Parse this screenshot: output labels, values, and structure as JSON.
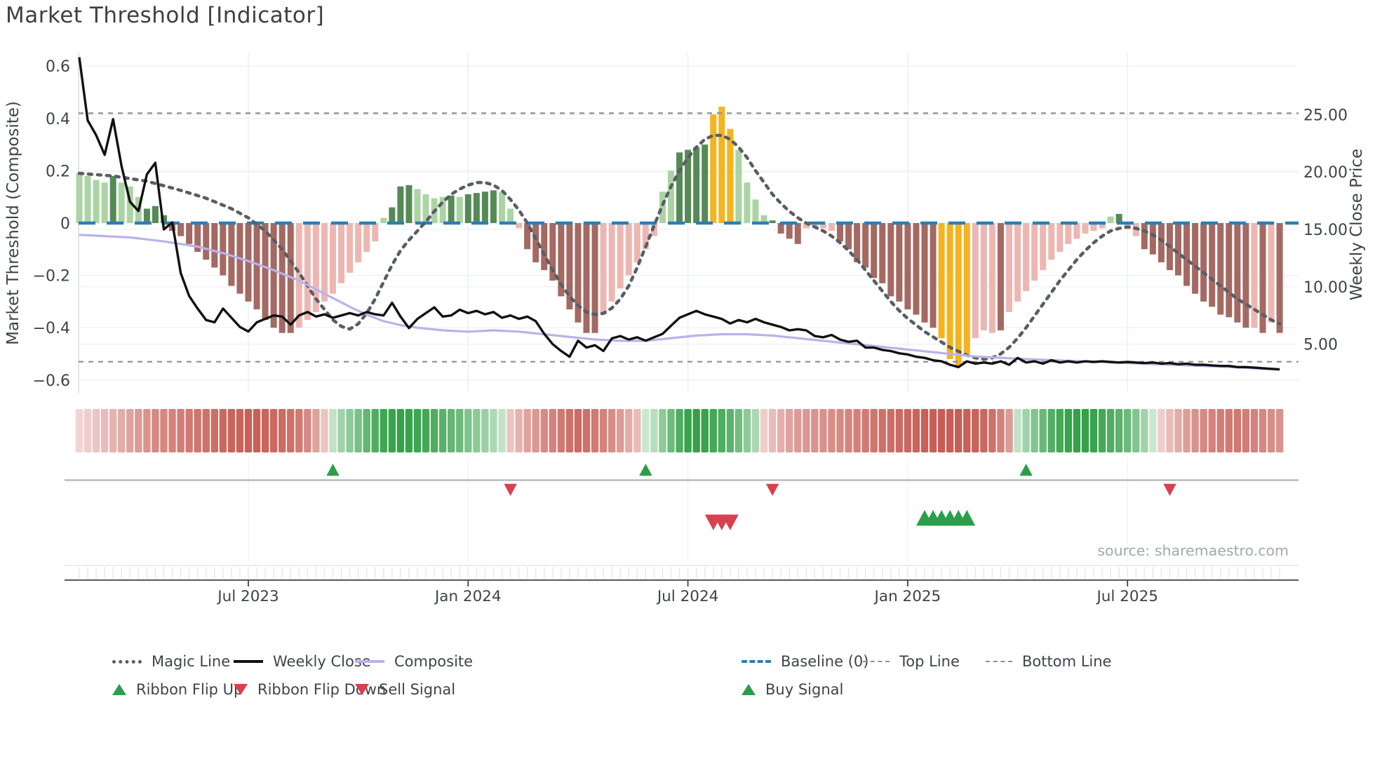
{
  "title": "Market Threshold [Indicator]",
  "source_text": "source: sharemaestro.com",
  "axes": {
    "left_label": "Market Threshold (Composite)",
    "right_label": "Weekly Close Price",
    "left_ticks": [
      {
        "label": "0.6",
        "value": 0.6
      },
      {
        "label": "0.4",
        "value": 0.4
      },
      {
        "label": "0.2",
        "value": 0.2
      },
      {
        "label": "0",
        "value": 0.0
      },
      {
        "label": "−0.2",
        "value": -0.2
      },
      {
        "label": "−0.4",
        "value": -0.4
      },
      {
        "label": "−0.6",
        "value": -0.6
      }
    ],
    "right_ticks": [
      {
        "label": "25.00",
        "value": 25
      },
      {
        "label": "20.00",
        "value": 20
      },
      {
        "label": "15.00",
        "value": 15
      },
      {
        "label": "10.00",
        "value": 10
      },
      {
        "label": "5.00",
        "value": 5
      }
    ],
    "x_ticks": [
      {
        "label": "Jul 2023",
        "week": 20
      },
      {
        "label": "Jan 2024",
        "week": 46
      },
      {
        "label": "Jul 2024",
        "week": 72
      },
      {
        "label": "Jan 2025",
        "week": 98
      },
      {
        "label": "Jul 2025",
        "week": 124
      }
    ]
  },
  "colors": {
    "bar_light_green": "#abd4a4",
    "bar_dark_green": "#558a57",
    "bar_yellow": "#f4b41d",
    "bar_light_red": "#ecb7b2",
    "bar_dark_red": "#a46962",
    "ribbon_green_max": "#2f9e44",
    "ribbon_red_max": "#c5584f",
    "magic_line": "#5a5e63",
    "weekly_close": "#111111",
    "composite": "#bab2e9",
    "baseline": "#2e7db4",
    "threshold_lines": "#8b8f93",
    "signal_green": "#2c9e4b",
    "signal_red": "#d8414e",
    "grid": "#eef1f4",
    "tick_text": "#3d4349",
    "source": "#a3a8ad"
  },
  "chart_data": {
    "type": "bar",
    "subtype": "weekly composite-threshold histogram with overlaid lines, signal ribbon and markers",
    "weeks": 143,
    "x_range": "Mar 2023 – Nov 2025 (weekly)",
    "left_ylim": [
      -0.6,
      0.6
    ],
    "right_ylim_prices": [
      5,
      25
    ],
    "baseline": 0,
    "top_line": 0.42,
    "bottom_line": -0.53,
    "threshold_bars": {
      "values": [
        0.19,
        0.18,
        0.165,
        0.155,
        0.18,
        0.155,
        0.14,
        0.1,
        0.055,
        0.065,
        0.03,
        -0.03,
        -0.05,
        -0.08,
        -0.11,
        -0.14,
        -0.17,
        -0.2,
        -0.24,
        -0.27,
        -0.3,
        -0.33,
        -0.37,
        -0.4,
        -0.42,
        -0.42,
        -0.4,
        -0.37,
        -0.34,
        -0.3,
        -0.27,
        -0.23,
        -0.19,
        -0.15,
        -0.11,
        -0.07,
        0.02,
        0.06,
        0.14,
        0.145,
        0.13,
        0.11,
        0.095,
        0.1,
        0.105,
        0.1,
        0.11,
        0.115,
        0.12,
        0.125,
        0.12,
        0.055,
        -0.02,
        -0.1,
        -0.15,
        -0.18,
        -0.22,
        -0.28,
        -0.33,
        -0.38,
        -0.42,
        -0.42,
        -0.35,
        -0.3,
        -0.25,
        -0.2,
        -0.15,
        -0.1,
        -0.05,
        0.12,
        0.2,
        0.27,
        0.28,
        0.29,
        0.3,
        0.415,
        0.445,
        0.36,
        0.28,
        0.155,
        0.09,
        0.03,
        0.01,
        -0.04,
        -0.06,
        -0.08,
        -0.02,
        -0.015,
        -0.02,
        -0.03,
        -0.07,
        -0.1,
        -0.15,
        -0.17,
        -0.21,
        -0.23,
        -0.28,
        -0.3,
        -0.33,
        -0.35,
        -0.38,
        -0.4,
        -0.44,
        -0.52,
        -0.55,
        -0.5,
        -0.44,
        -0.41,
        -0.42,
        -0.41,
        -0.34,
        -0.3,
        -0.26,
        -0.22,
        -0.18,
        -0.14,
        -0.11,
        -0.08,
        -0.06,
        -0.04,
        -0.03,
        -0.02,
        0.025,
        0.035,
        -0.02,
        -0.05,
        -0.1,
        -0.12,
        -0.15,
        -0.18,
        -0.2,
        -0.24,
        -0.27,
        -0.3,
        -0.32,
        -0.35,
        -0.36,
        -0.38,
        -0.4,
        -0.4,
        -0.42,
        -0.38,
        -0.42
      ],
      "classes": [
        "lg",
        "lg",
        "lg",
        "lg",
        "dg",
        "lg",
        "lg",
        "lg",
        "dg",
        "dg",
        "dg",
        "dr",
        "dr",
        "dr",
        "dr",
        "dr",
        "dr",
        "dr",
        "dr",
        "dr",
        "dr",
        "dr",
        "dr",
        "dr",
        "dr",
        "dr",
        "lr",
        "lr",
        "lr",
        "lr",
        "lr",
        "lr",
        "lr",
        "lr",
        "lr",
        "lr",
        "lg",
        "dg",
        "dg",
        "dg",
        "lg",
        "lg",
        "lg",
        "lg",
        "dg",
        "lg",
        "dg",
        "dg",
        "dg",
        "dg",
        "lg",
        "lg",
        "lr",
        "dr",
        "dr",
        "dr",
        "dr",
        "dr",
        "dr",
        "dr",
        "dr",
        "dr",
        "lr",
        "lr",
        "lr",
        "lr",
        "lr",
        "lr",
        "lr",
        "lg",
        "lg",
        "dg",
        "dg",
        "dg",
        "dg",
        "y",
        "y",
        "y",
        "lg",
        "lg",
        "lg",
        "lg",
        "dg",
        "dr",
        "dr",
        "dr",
        "lr",
        "lr",
        "lr",
        "lr",
        "dr",
        "dr",
        "dr",
        "dr",
        "dr",
        "dr",
        "dr",
        "dr",
        "dr",
        "dr",
        "dr",
        "dr",
        "y",
        "y",
        "y",
        "y",
        "lr",
        "lr",
        "lr",
        "dr",
        "lr",
        "lr",
        "lr",
        "lr",
        "lr",
        "lr",
        "lr",
        "lr",
        "lr",
        "lr",
        "lr",
        "lr",
        "lg",
        "dg",
        "lr",
        "lr",
        "dr",
        "dr",
        "dr",
        "dr",
        "dr",
        "dr",
        "dr",
        "dr",
        "dr",
        "dr",
        "dr",
        "dr",
        "dr",
        "lr",
        "dr",
        "lr",
        "dr"
      ]
    },
    "weekly_close": [
      30.0,
      24.5,
      23.2,
      21.5,
      24.6,
      20.5,
      17.4,
      16.6,
      19.8,
      20.8,
      15.0,
      15.6,
      11.2,
      9.2,
      8.1,
      7.1,
      6.9,
      8.1,
      7.3,
      6.5,
      6.1,
      6.9,
      7.2,
      7.5,
      7.4,
      6.7,
      7.5,
      7.8,
      7.4,
      7.6,
      7.3,
      7.5,
      7.7,
      7.5,
      7.8,
      7.6,
      7.5,
      8.6,
      7.4,
      6.4,
      7.2,
      7.7,
      8.2,
      7.4,
      7.5,
      8.0,
      7.7,
      7.9,
      7.6,
      7.8,
      7.3,
      7.5,
      7.2,
      7.4,
      7.0,
      5.9,
      5.0,
      4.4,
      3.9,
      5.3,
      4.7,
      4.9,
      4.4,
      5.5,
      5.7,
      5.4,
      5.6,
      5.3,
      5.6,
      5.9,
      6.6,
      7.3,
      7.6,
      7.9,
      7.6,
      7.4,
      7.2,
      6.8,
      7.1,
      6.9,
      7.2,
      6.9,
      6.7,
      6.5,
      6.2,
      6.3,
      6.2,
      5.7,
      5.6,
      5.8,
      5.4,
      5.2,
      5.3,
      4.7,
      4.7,
      4.5,
      4.4,
      4.2,
      4.1,
      3.9,
      3.8,
      3.6,
      3.5,
      3.2,
      3.0,
      3.5,
      3.3,
      3.4,
      3.3,
      3.5,
      3.2,
      3.8,
      3.4,
      3.5,
      3.3,
      3.6,
      3.4,
      3.5,
      3.4,
      3.5,
      3.45,
      3.5,
      3.45,
      3.4,
      3.45,
      3.4,
      3.35,
      3.4,
      3.3,
      3.35,
      3.25,
      3.3,
      3.2,
      3.2,
      3.15,
      3.1,
      3.1,
      3.0,
      3.0,
      2.95,
      2.9,
      2.85,
      2.8
    ],
    "composite_keypoints": [
      [
        0,
        -0.045
      ],
      [
        6,
        -0.055
      ],
      [
        10,
        -0.07
      ],
      [
        14,
        -0.09
      ],
      [
        17,
        -0.115
      ],
      [
        20,
        -0.145
      ],
      [
        23,
        -0.18
      ],
      [
        26,
        -0.22
      ],
      [
        29,
        -0.27
      ],
      [
        32,
        -0.32
      ],
      [
        34,
        -0.35
      ],
      [
        36,
        -0.375
      ],
      [
        38,
        -0.39
      ],
      [
        40,
        -0.4
      ],
      [
        43,
        -0.41
      ],
      [
        46,
        -0.415
      ],
      [
        49,
        -0.41
      ],
      [
        52,
        -0.415
      ],
      [
        55,
        -0.425
      ],
      [
        58,
        -0.435
      ],
      [
        61,
        -0.445
      ],
      [
        64,
        -0.45
      ],
      [
        67,
        -0.45
      ],
      [
        70,
        -0.44
      ],
      [
        73,
        -0.43
      ],
      [
        76,
        -0.425
      ],
      [
        79,
        -0.425
      ],
      [
        82,
        -0.43
      ],
      [
        85,
        -0.44
      ],
      [
        88,
        -0.45
      ],
      [
        91,
        -0.46
      ],
      [
        94,
        -0.47
      ],
      [
        97,
        -0.48
      ],
      [
        100,
        -0.49
      ],
      [
        103,
        -0.5
      ],
      [
        106,
        -0.51
      ],
      [
        109,
        -0.515
      ],
      [
        112,
        -0.52
      ],
      [
        116,
        -0.525
      ],
      [
        120,
        -0.53
      ],
      [
        124,
        -0.535
      ],
      [
        128,
        -0.54
      ],
      [
        132,
        -0.545
      ],
      [
        136,
        -0.55
      ],
      [
        139,
        -0.555
      ],
      [
        142,
        -0.56
      ]
    ],
    "magic_keypoints": [
      [
        0,
        0.19
      ],
      [
        4,
        0.18
      ],
      [
        8,
        0.16
      ],
      [
        12,
        0.125
      ],
      [
        15,
        0.095
      ],
      [
        18,
        0.055
      ],
      [
        20,
        0.02
      ],
      [
        22,
        -0.03
      ],
      [
        24,
        -0.1
      ],
      [
        26,
        -0.19
      ],
      [
        28,
        -0.29
      ],
      [
        30,
        -0.37
      ],
      [
        31,
        -0.395
      ],
      [
        32,
        -0.405
      ],
      [
        33,
        -0.385
      ],
      [
        34,
        -0.345
      ],
      [
        35,
        -0.29
      ],
      [
        36,
        -0.225
      ],
      [
        37,
        -0.16
      ],
      [
        38,
        -0.105
      ],
      [
        39,
        -0.065
      ],
      [
        40,
        -0.03
      ],
      [
        41,
        0.005
      ],
      [
        42,
        0.045
      ],
      [
        43,
        0.08
      ],
      [
        44,
        0.11
      ],
      [
        45,
        0.13
      ],
      [
        46,
        0.145
      ],
      [
        47,
        0.155
      ],
      [
        48,
        0.155
      ],
      [
        49,
        0.145
      ],
      [
        50,
        0.125
      ],
      [
        51,
        0.09
      ],
      [
        52,
        0.05
      ],
      [
        53,
        0.0
      ],
      [
        54,
        -0.06
      ],
      [
        55,
        -0.12
      ],
      [
        56,
        -0.18
      ],
      [
        57,
        -0.235
      ],
      [
        58,
        -0.28
      ],
      [
        59,
        -0.315
      ],
      [
        60,
        -0.34
      ],
      [
        61,
        -0.35
      ],
      [
        62,
        -0.345
      ],
      [
        63,
        -0.325
      ],
      [
        64,
        -0.29
      ],
      [
        65,
        -0.24
      ],
      [
        66,
        -0.17
      ],
      [
        67,
        -0.09
      ],
      [
        68,
        -0.01
      ],
      [
        69,
        0.07
      ],
      [
        70,
        0.14
      ],
      [
        71,
        0.2
      ],
      [
        72,
        0.25
      ],
      [
        73,
        0.29
      ],
      [
        74,
        0.32
      ],
      [
        75,
        0.335
      ],
      [
        76,
        0.335
      ],
      [
        77,
        0.32
      ],
      [
        78,
        0.29
      ],
      [
        79,
        0.25
      ],
      [
        80,
        0.2
      ],
      [
        81,
        0.155
      ],
      [
        82,
        0.11
      ],
      [
        83,
        0.075
      ],
      [
        84,
        0.045
      ],
      [
        85,
        0.02
      ],
      [
        86,
        0.0
      ],
      [
        87,
        -0.015
      ],
      [
        88,
        -0.03
      ],
      [
        89,
        -0.05
      ],
      [
        90,
        -0.075
      ],
      [
        91,
        -0.105
      ],
      [
        92,
        -0.14
      ],
      [
        93,
        -0.18
      ],
      [
        94,
        -0.22
      ],
      [
        95,
        -0.26
      ],
      [
        96,
        -0.3
      ],
      [
        97,
        -0.335
      ],
      [
        98,
        -0.365
      ],
      [
        99,
        -0.39
      ],
      [
        100,
        -0.415
      ],
      [
        101,
        -0.435
      ],
      [
        102,
        -0.455
      ],
      [
        103,
        -0.475
      ],
      [
        104,
        -0.49
      ],
      [
        105,
        -0.505
      ],
      [
        106,
        -0.515
      ],
      [
        107,
        -0.52
      ],
      [
        108,
        -0.515
      ],
      [
        109,
        -0.5
      ],
      [
        110,
        -0.475
      ],
      [
        111,
        -0.44
      ],
      [
        112,
        -0.4
      ],
      [
        113,
        -0.355
      ],
      [
        114,
        -0.31
      ],
      [
        115,
        -0.265
      ],
      [
        116,
        -0.22
      ],
      [
        117,
        -0.18
      ],
      [
        118,
        -0.14
      ],
      [
        119,
        -0.105
      ],
      [
        120,
        -0.075
      ],
      [
        121,
        -0.05
      ],
      [
        122,
        -0.03
      ],
      [
        123,
        -0.02
      ],
      [
        124,
        -0.015
      ],
      [
        125,
        -0.02
      ],
      [
        126,
        -0.03
      ],
      [
        127,
        -0.045
      ],
      [
        128,
        -0.065
      ],
      [
        129,
        -0.09
      ],
      [
        130,
        -0.115
      ],
      [
        131,
        -0.14
      ],
      [
        132,
        -0.165
      ],
      [
        133,
        -0.19
      ],
      [
        134,
        -0.215
      ],
      [
        135,
        -0.24
      ],
      [
        136,
        -0.265
      ],
      [
        137,
        -0.29
      ],
      [
        138,
        -0.31
      ],
      [
        139,
        -0.33
      ],
      [
        140,
        -0.35
      ],
      [
        141,
        -0.37
      ],
      [
        142,
        -0.385
      ]
    ],
    "ribbon": [
      -0.25,
      -0.3,
      -0.35,
      -0.4,
      -0.45,
      -0.5,
      -0.55,
      -0.6,
      -0.65,
      -0.7,
      -0.72,
      -0.75,
      -0.78,
      -0.8,
      -0.82,
      -0.85,
      -0.87,
      -0.9,
      -0.92,
      -0.93,
      -0.95,
      -0.95,
      -0.93,
      -0.9,
      -0.88,
      -0.85,
      -0.8,
      -0.7,
      -0.55,
      -0.35,
      0.3,
      0.45,
      0.55,
      0.65,
      0.75,
      0.85,
      0.92,
      0.95,
      0.97,
      0.95,
      0.93,
      0.9,
      0.85,
      0.8,
      0.75,
      0.7,
      0.62,
      0.55,
      0.48,
      0.4,
      0.3,
      -0.35,
      -0.45,
      -0.55,
      -0.62,
      -0.7,
      -0.75,
      -0.8,
      -0.85,
      -0.88,
      -0.85,
      -0.8,
      -0.75,
      -0.68,
      -0.6,
      -0.5,
      -0.4,
      0.25,
      0.35,
      0.55,
      0.7,
      0.85,
      0.95,
      0.97,
      0.95,
      0.9,
      0.85,
      0.78,
      0.68,
      0.55,
      0.4,
      -0.3,
      -0.4,
      -0.48,
      -0.55,
      -0.6,
      -0.62,
      -0.64,
      -0.66,
      -0.68,
      -0.7,
      -0.73,
      -0.76,
      -0.79,
      -0.82,
      -0.85,
      -0.87,
      -0.89,
      -0.91,
      -0.93,
      -0.95,
      -0.96,
      -0.97,
      -0.97,
      -0.96,
      -0.95,
      -0.93,
      -0.9,
      -0.85,
      -0.75,
      -0.6,
      0.3,
      0.45,
      0.6,
      0.72,
      0.82,
      0.9,
      0.95,
      0.97,
      0.97,
      0.95,
      0.9,
      0.85,
      0.78,
      0.7,
      0.6,
      0.45,
      0.25,
      -0.3,
      -0.4,
      -0.5,
      -0.58,
      -0.65,
      -0.7,
      -0.75,
      -0.78,
      -0.8,
      -0.8,
      -0.78,
      -0.75,
      -0.72,
      -0.68,
      -0.65
    ],
    "signals": {
      "ribbon_flip_up_weeks": [
        30,
        67,
        112
      ],
      "ribbon_flip_down_weeks": [
        51,
        82,
        129
      ],
      "sell_weeks": [
        75,
        76,
        77
      ],
      "buy_weeks": [
        100,
        101,
        102,
        103,
        104,
        105
      ]
    }
  },
  "legend": {
    "items": [
      {
        "label": "Magic Line",
        "swatch": "magic-dotted-line"
      },
      {
        "label": "Weekly Close",
        "swatch": "black-solid-line"
      },
      {
        "label": "Composite",
        "swatch": "purple-solid-line"
      },
      {
        "label": "Baseline (0)",
        "swatch": "blue-dashed-line"
      },
      {
        "label": "Top Line",
        "swatch": "gray-dashed-line"
      },
      {
        "label": "Bottom Line",
        "swatch": "gray-dashed-line"
      },
      {
        "label": "Ribbon Flip Up",
        "swatch": "green-triangle-up"
      },
      {
        "label": "Ribbon Flip Down",
        "swatch": "red-triangle-down"
      },
      {
        "label": "Sell Signal",
        "swatch": "red-triangle-down"
      },
      {
        "label": "Buy Signal",
        "swatch": "green-triangle-up"
      }
    ]
  }
}
